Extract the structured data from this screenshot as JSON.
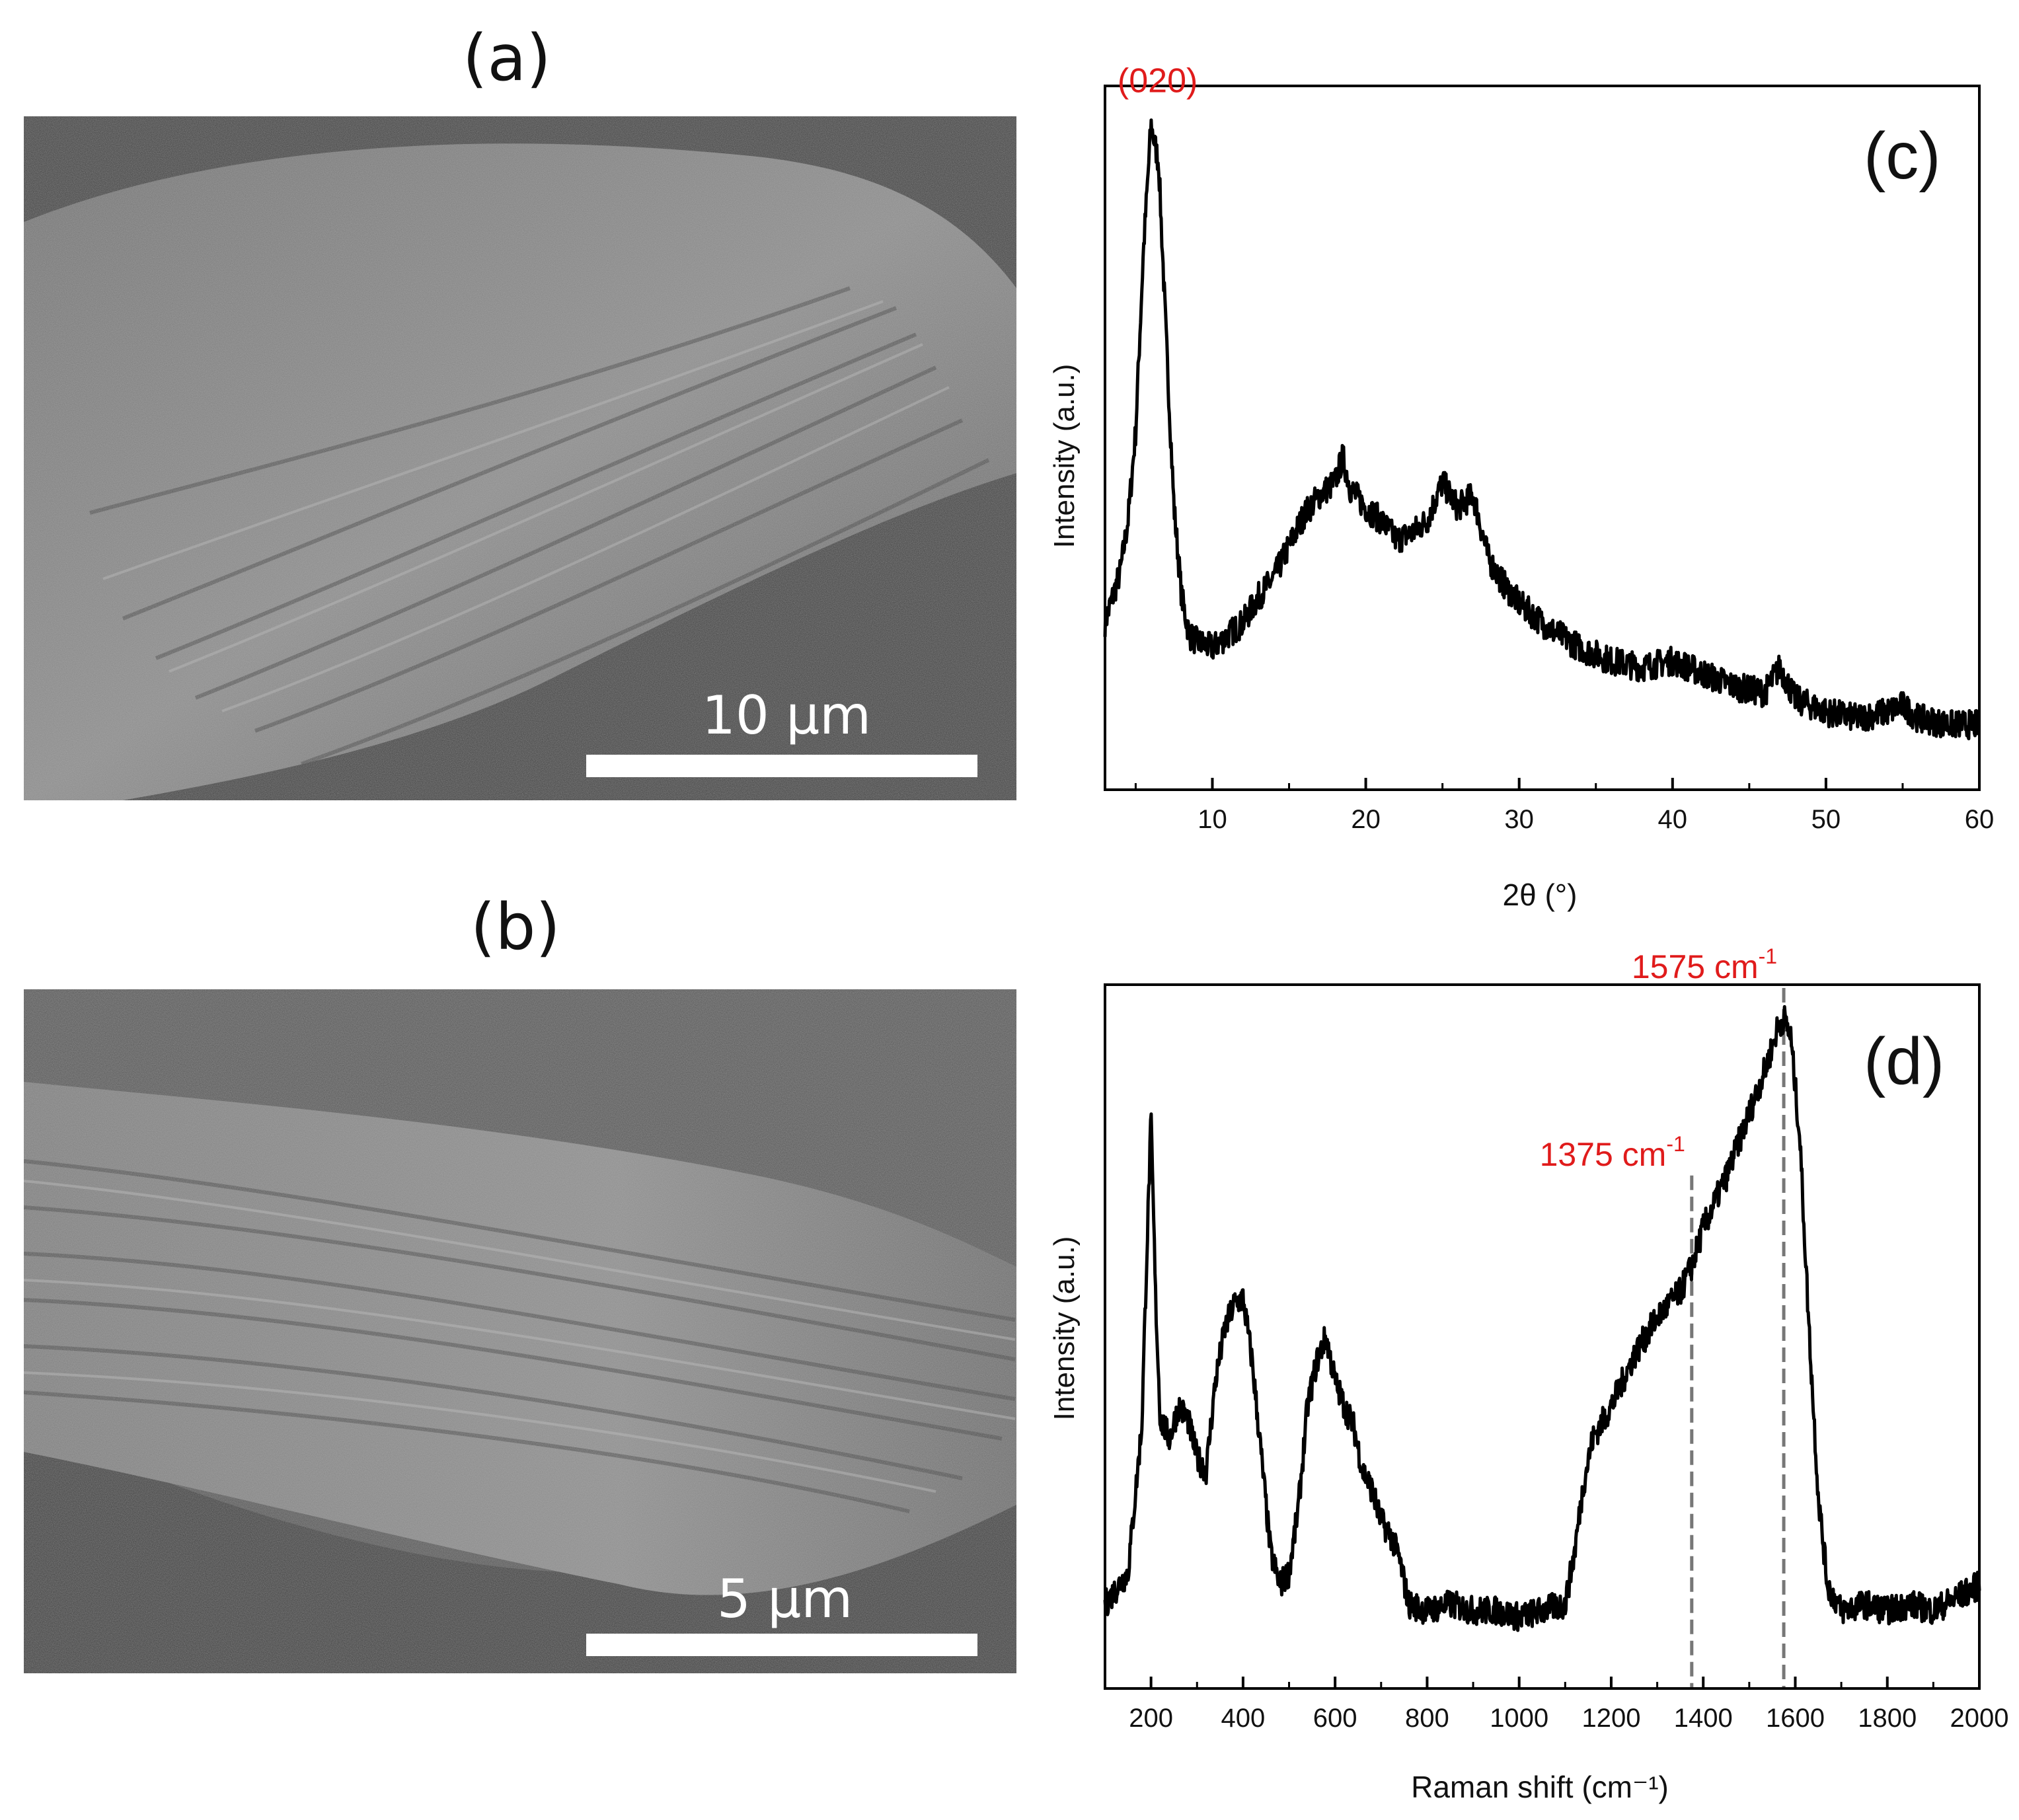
{
  "panels": {
    "a": {
      "label": "(a)",
      "scale_label": "10 μm"
    },
    "b": {
      "label": "(b)",
      "scale_label": "5 μm"
    },
    "c": {
      "label": "(c)"
    },
    "d": {
      "label": "(d)"
    }
  },
  "colors": {
    "annotation": "#e01b1b",
    "curve": "#000000",
    "guide": "#777777"
  },
  "chart_data": [
    {
      "id": "c",
      "type": "line",
      "title": "",
      "xlabel": "2θ (°)",
      "ylabel": "Intensity (a.u.)",
      "xlim": [
        3,
        60
      ],
      "ylim": [
        0,
        1
      ],
      "y_ticks_shown": false,
      "xticks": [
        10,
        20,
        30,
        40,
        50,
        60
      ],
      "annotations": [
        {
          "text": "(020)",
          "x": 6,
          "y": 0.98
        }
      ],
      "series": [
        {
          "x": [
            3,
            4,
            4.5,
            5,
            5.5,
            6,
            6.5,
            7,
            7.5,
            8,
            8.5,
            9,
            10,
            11,
            12,
            13,
            14,
            15,
            16,
            17,
            18,
            18.5,
            19,
            20,
            21,
            22,
            23,
            24,
            25,
            26,
            27,
            28,
            29,
            30,
            32,
            34,
            36,
            38,
            40,
            42,
            44,
            46,
            47,
            48,
            50,
            52,
            54,
            55,
            56,
            58,
            60
          ],
          "y": [
            0.2,
            0.28,
            0.36,
            0.5,
            0.78,
            0.98,
            0.92,
            0.64,
            0.38,
            0.24,
            0.18,
            0.17,
            0.16,
            0.18,
            0.2,
            0.24,
            0.27,
            0.32,
            0.37,
            0.4,
            0.42,
            0.46,
            0.41,
            0.38,
            0.36,
            0.33,
            0.34,
            0.36,
            0.42,
            0.38,
            0.4,
            0.3,
            0.26,
            0.23,
            0.19,
            0.16,
            0.14,
            0.13,
            0.14,
            0.12,
            0.1,
            0.09,
            0.13,
            0.08,
            0.06,
            0.05,
            0.06,
            0.07,
            0.05,
            0.04,
            0.04
          ]
        }
      ]
    },
    {
      "id": "d",
      "type": "line",
      "title": "",
      "xlabel": "Raman shift (cm⁻¹)",
      "ylabel": "Intensity (a.u.)",
      "xlim": [
        100,
        2000
      ],
      "ylim": [
        0,
        1
      ],
      "y_ticks_shown": false,
      "xticks": [
        200,
        400,
        600,
        800,
        1000,
        1200,
        1400,
        1600,
        1800,
        2000
      ],
      "guides": [
        1375,
        1575
      ],
      "annotations": [
        {
          "text": "1375 cm",
          "sup": "-1",
          "x": 1375
        },
        {
          "text": "1575 cm",
          "sup": "-1",
          "x": 1575
        }
      ],
      "series": [
        {
          "x": [
            100,
            150,
            180,
            190,
            200,
            210,
            220,
            240,
            260,
            280,
            300,
            320,
            340,
            360,
            380,
            400,
            420,
            440,
            460,
            480,
            500,
            520,
            540,
            560,
            580,
            600,
            620,
            640,
            660,
            680,
            700,
            720,
            740,
            760,
            800,
            850,
            900,
            950,
            1000,
            1050,
            1100,
            1120,
            1140,
            1160,
            1200,
            1250,
            1300,
            1350,
            1375,
            1400,
            1450,
            1500,
            1540,
            1560,
            1575,
            1590,
            1610,
            1630,
            1650,
            1670,
            1700,
            1750,
            1800,
            1850,
            1900,
            1950,
            2000
          ],
          "y": [
            0.07,
            0.12,
            0.35,
            0.6,
            0.83,
            0.55,
            0.36,
            0.33,
            0.38,
            0.36,
            0.3,
            0.28,
            0.42,
            0.5,
            0.54,
            0.55,
            0.45,
            0.3,
            0.15,
            0.1,
            0.12,
            0.22,
            0.38,
            0.45,
            0.49,
            0.42,
            0.38,
            0.35,
            0.28,
            0.25,
            0.2,
            0.18,
            0.14,
            0.07,
            0.06,
            0.07,
            0.06,
            0.06,
            0.05,
            0.06,
            0.07,
            0.15,
            0.26,
            0.33,
            0.38,
            0.46,
            0.52,
            0.56,
            0.6,
            0.66,
            0.74,
            0.84,
            0.92,
            0.97,
            0.99,
            0.96,
            0.8,
            0.5,
            0.24,
            0.1,
            0.06,
            0.07,
            0.06,
            0.07,
            0.06,
            0.08,
            0.1
          ]
        }
      ]
    }
  ]
}
